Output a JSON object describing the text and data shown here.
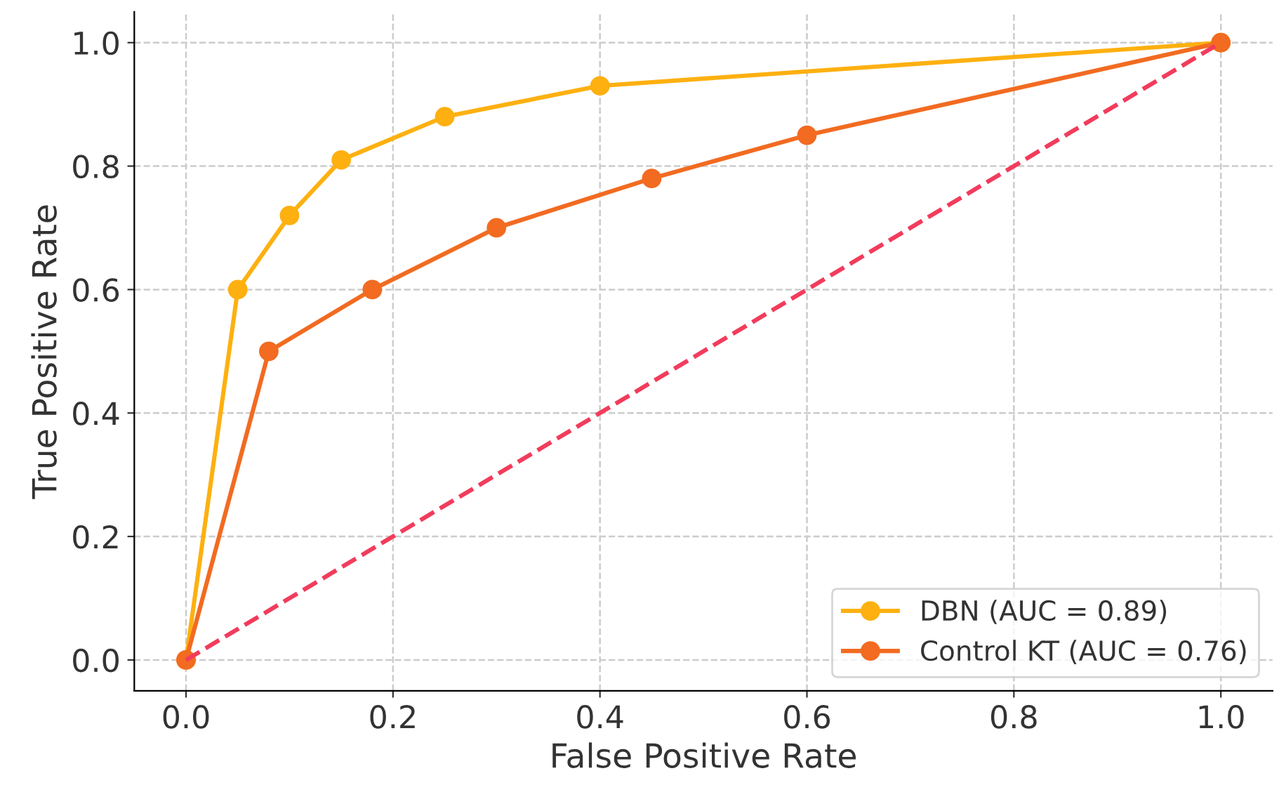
{
  "chart_data": {
    "type": "line",
    "xlabel": "False Positive Rate",
    "ylabel": "True Positive Rate",
    "xlim": [
      -0.05,
      1.05
    ],
    "ylim": [
      -0.05,
      1.05
    ],
    "xticks": [
      {
        "value": 0,
        "label": "0.0"
      },
      {
        "value": 0.2,
        "label": "0.2"
      },
      {
        "value": 0.4,
        "label": "0.4"
      },
      {
        "value": 0.6,
        "label": "0.6"
      },
      {
        "value": 0.8,
        "label": "0.8"
      },
      {
        "value": 1,
        "label": "1.0"
      }
    ],
    "yticks": [
      {
        "value": 0,
        "label": "0.0"
      },
      {
        "value": 0.2,
        "label": "0.2"
      },
      {
        "value": 0.4,
        "label": "0.4"
      },
      {
        "value": 0.6,
        "label": "0.6"
      },
      {
        "value": 0.8,
        "label": "0.8"
      },
      {
        "value": 1,
        "label": "1.0"
      }
    ],
    "grid": true,
    "legend": "bottom right",
    "series": [
      {
        "name": "DBN (AUC = 0.89)",
        "color": "#fdb010",
        "marker": "circle",
        "line_style": "solid",
        "x": [
          0,
          0.05,
          0.1,
          0.15,
          0.25,
          0.4,
          1
        ],
        "values": [
          0,
          0.6,
          0.72,
          0.81,
          0.88,
          0.93,
          1
        ]
      },
      {
        "name": "Control KT (AUC = 0.76)",
        "color": "#f26b21",
        "marker": "circle",
        "line_style": "solid",
        "x": [
          0,
          0.08,
          0.18,
          0.3,
          0.45,
          0.6,
          1
        ],
        "values": [
          0,
          0.5,
          0.6,
          0.7,
          0.78,
          0.85,
          1
        ]
      },
      {
        "color": "#f23c5c",
        "marker": "none",
        "line_style": "dashed",
        "x": [
          0,
          1
        ],
        "values": [
          0,
          1
        ]
      }
    ]
  }
}
